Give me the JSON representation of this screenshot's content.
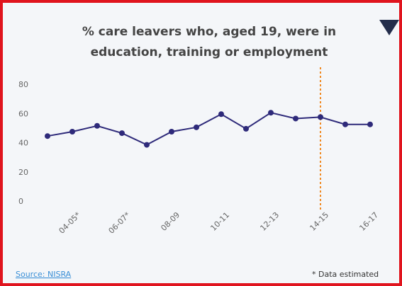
{
  "chart_data": {
    "type": "line",
    "title": [
      "% care leavers who, aged 19, were in",
      "education, training or employment"
    ],
    "categories": [
      null,
      "04-05*",
      null,
      "06-07*",
      null,
      "08-09",
      null,
      "10-11",
      null,
      "12-13",
      null,
      "14-15",
      null,
      "16-17"
    ],
    "series": [
      {
        "name": "care leavers in education, training or employment",
        "color": "#2e2a7a",
        "values": [
          45,
          48,
          52,
          47,
          39,
          48,
          51,
          60,
          50,
          61,
          57,
          58,
          53,
          53
        ]
      }
    ],
    "ylim": [
      0,
      80
    ],
    "yticks": [
      0,
      20,
      40,
      60,
      80
    ],
    "reference_category": "14-15",
    "reference_color": "#f08a24",
    "source": "Source: NISRA",
    "note": "* Data estimated"
  }
}
